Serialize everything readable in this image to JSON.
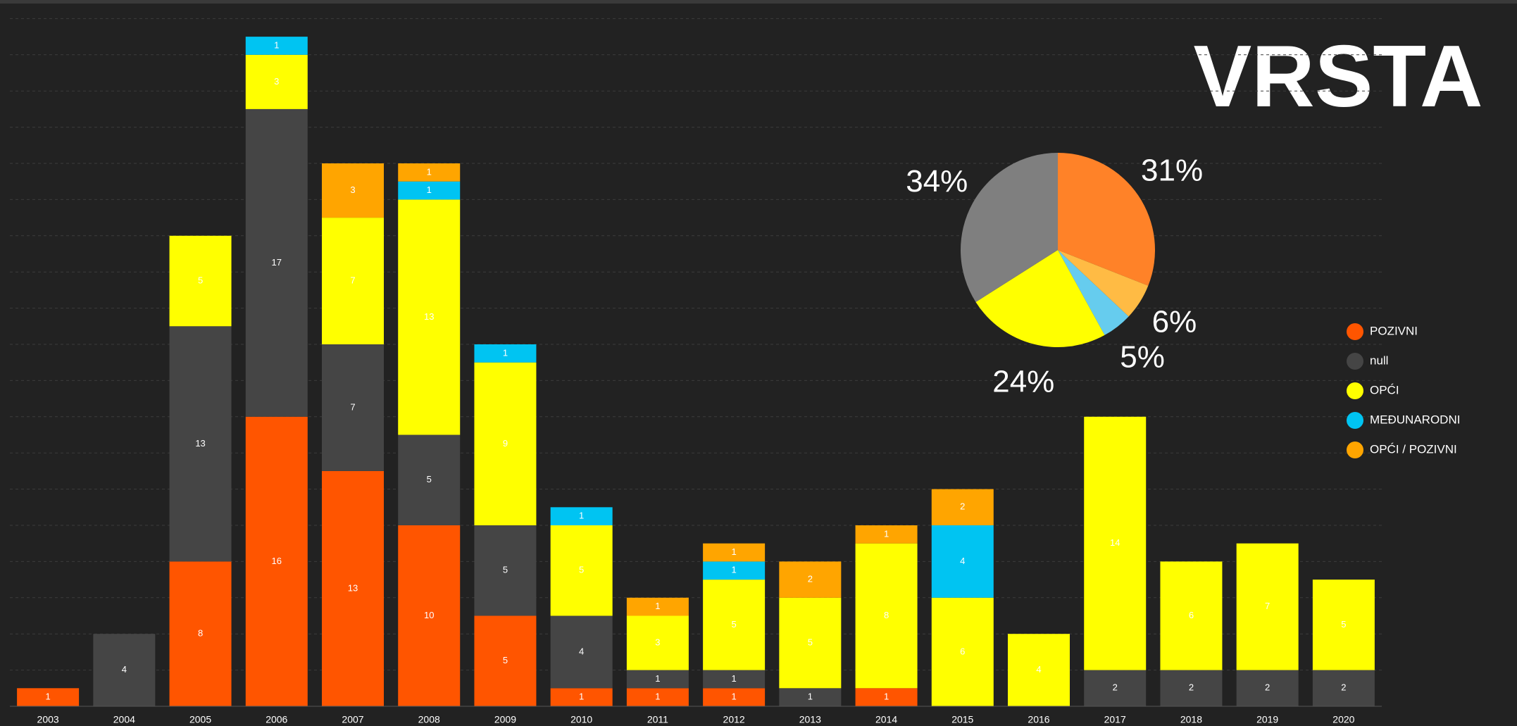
{
  "chart_data": [
    {
      "type": "stacked_bar",
      "title": "VRSTA",
      "categories": [
        "2003",
        "2004",
        "2005",
        "2006",
        "2007",
        "2008",
        "2009",
        "2010",
        "2011",
        "2012",
        "2013",
        "2014",
        "2015",
        "2016",
        "2017",
        "2018",
        "2019",
        "2020"
      ],
      "series": [
        {
          "name": "POZIVNI",
          "color": "#ff5500",
          "values": [
            1,
            null,
            8,
            16,
            13,
            10,
            5,
            1,
            1,
            1,
            null,
            1,
            null,
            null,
            null,
            null,
            null,
            null
          ]
        },
        {
          "name": "null",
          "color": "#454545",
          "values": [
            null,
            4,
            13,
            17,
            7,
            5,
            5,
            4,
            1,
            1,
            1,
            null,
            null,
            null,
            2,
            2,
            2,
            2
          ]
        },
        {
          "name": "OPĆI",
          "color": "#ffff00",
          "values": [
            null,
            null,
            5,
            3,
            7,
            13,
            9,
            5,
            3,
            5,
            5,
            8,
            6,
            4,
            14,
            6,
            7,
            5
          ]
        },
        {
          "name": "MEĐUNARODNI",
          "color": "#00c4f2",
          "values": [
            null,
            null,
            null,
            1,
            null,
            1,
            1,
            1,
            null,
            1,
            null,
            null,
            4,
            null,
            null,
            null,
            null,
            null
          ]
        },
        {
          "name": "OPĆI / POZIVNI",
          "color": "#ffa500",
          "values": [
            null,
            null,
            null,
            null,
            3,
            1,
            null,
            null,
            1,
            1,
            2,
            1,
            2,
            null,
            null,
            null,
            null,
            null
          ]
        }
      ],
      "ylim": [
        0,
        39
      ],
      "yticks": [
        0,
        2,
        4,
        6,
        8,
        10,
        12,
        14,
        16,
        18,
        20,
        22,
        24,
        26,
        28,
        30,
        32,
        34,
        36,
        38
      ],
      "grid": true,
      "legend": "right"
    },
    {
      "type": "pie",
      "values": [
        31,
        6,
        5,
        24,
        34
      ],
      "value_labels": [
        "31%",
        "6%",
        "5%",
        "24%",
        "34%"
      ],
      "colors": [
        "#ff8228",
        "#ffbb44",
        "#66ccee",
        "#ffff00",
        "#7f7f7f"
      ]
    }
  ]
}
